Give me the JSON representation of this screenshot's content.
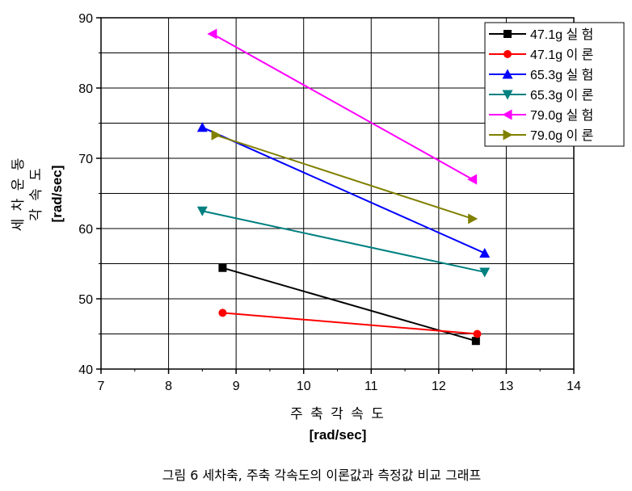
{
  "chart_data": {
    "type": "line",
    "xlabel": "주 축 각 속 도",
    "xunit": "[rad/sec]",
    "ylabel_line1": "세 차 운 동",
    "ylabel_line2": "각 속 도",
    "yunit": "[rad/sec]",
    "xlim": [
      7,
      14
    ],
    "ylim": [
      40,
      90
    ],
    "xticks": [
      "7",
      "8",
      "9",
      "10",
      "11",
      "12",
      "13",
      "14"
    ],
    "yticks": [
      "40",
      "50",
      "60",
      "70",
      "80",
      "90"
    ],
    "grid": true,
    "legend_position": "top-right",
    "series": [
      {
        "name": "47.1g 실 험",
        "marker": "square",
        "color": "#000000",
        "points": [
          [
            8.8,
            54.4
          ],
          [
            12.55,
            44.0
          ]
        ]
      },
      {
        "name": "47.1g 이 론",
        "marker": "circle",
        "color": "#ff0000",
        "points": [
          [
            8.8,
            48.0
          ],
          [
            12.57,
            45.0
          ]
        ]
      },
      {
        "name": "65.3g 실 험",
        "marker": "triangle-up",
        "color": "#0000ff",
        "points": [
          [
            8.5,
            74.4
          ],
          [
            12.68,
            56.5
          ]
        ]
      },
      {
        "name": "65.3g 이 론",
        "marker": "triangle-down",
        "color": "#008080",
        "points": [
          [
            8.5,
            62.5
          ],
          [
            12.68,
            53.8
          ]
        ]
      },
      {
        "name": "79.0g 실 험",
        "marker": "triangle-left",
        "color": "#ff00ff",
        "points": [
          [
            8.65,
            87.7
          ],
          [
            12.5,
            67.0
          ]
        ]
      },
      {
        "name": "79.0g 이 론",
        "marker": "triangle-right",
        "color": "#808000",
        "points": [
          [
            8.7,
            73.3
          ],
          [
            12.5,
            61.4
          ]
        ]
      }
    ]
  },
  "caption": "그림 6 세차축, 주축 각속도의 이론값과 측정값 비교 그래프"
}
